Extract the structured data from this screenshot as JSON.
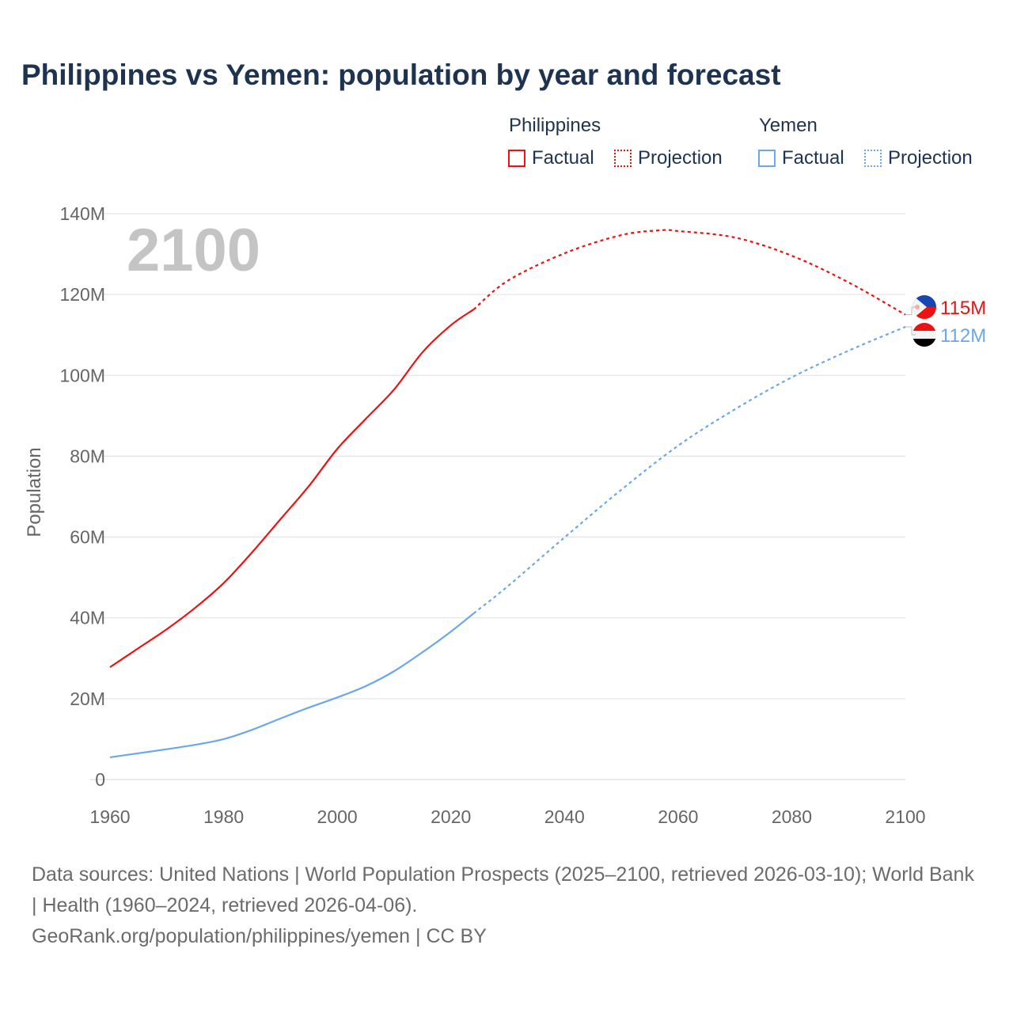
{
  "title": "Philippines vs Yemen: population by year and forecast",
  "legend": {
    "groups": [
      {
        "name": "Philippines",
        "factual": "Factual",
        "projection": "Projection",
        "color": "#ee1111"
      },
      {
        "name": "Yemen",
        "factual": "Factual",
        "projection": "Projection",
        "color": "#6ba8e8"
      }
    ]
  },
  "year_label": "2100",
  "footer": {
    "line1": "Data sources: United Nations | World Population Prospects (2025–2100, retrieved 2026-03-10); World Bank | Health (1960–2024, retrieved 2026-04-06).",
    "line2": "GeoRank.org/population/philippines/yemen | CC BY"
  },
  "chart_data": {
    "type": "line",
    "title": "Philippines vs Yemen: population by year and forecast",
    "xlabel": "",
    "ylabel": "Population",
    "xlim": [
      1960,
      2100
    ],
    "ylim": [
      0,
      140
    ],
    "xticks": [
      "1960",
      "1980",
      "2000",
      "2020",
      "2040",
      "2060",
      "2080",
      "2100"
    ],
    "yticks": [
      "0",
      "20M",
      "40M",
      "60M",
      "80M",
      "100M",
      "120M",
      "140M"
    ],
    "grid": true,
    "series": [
      {
        "name": "Philippines",
        "color": "#ee1111",
        "end_label": "115M",
        "factual": [
          [
            1960,
            27.8
          ],
          [
            1965,
            32.5
          ],
          [
            1970,
            37.2
          ],
          [
            1975,
            42.5
          ],
          [
            1980,
            48.6
          ],
          [
            1985,
            56.2
          ],
          [
            1990,
            64.4
          ],
          [
            1995,
            72.6
          ],
          [
            2000,
            81.8
          ],
          [
            2005,
            89.2
          ],
          [
            2010,
            96.5
          ],
          [
            2015,
            105.7
          ],
          [
            2020,
            112.4
          ],
          [
            2024,
            116.3
          ]
        ],
        "projection": [
          [
            2024,
            116.3
          ],
          [
            2030,
            123.4
          ],
          [
            2040,
            130.2
          ],
          [
            2050,
            134.7
          ],
          [
            2057,
            135.9
          ],
          [
            2060,
            135.7
          ],
          [
            2070,
            134.1
          ],
          [
            2080,
            129.6
          ],
          [
            2090,
            123
          ],
          [
            2100,
            115
          ]
        ]
      },
      {
        "name": "Yemen",
        "color": "#6ba8e8",
        "end_label": "112M",
        "factual": [
          [
            1960,
            5.5
          ],
          [
            1965,
            6.5
          ],
          [
            1970,
            7.5
          ],
          [
            1975,
            8.6
          ],
          [
            1980,
            10
          ],
          [
            1985,
            12.3
          ],
          [
            1990,
            15.1
          ],
          [
            1995,
            17.8
          ],
          [
            2000,
            20.3
          ],
          [
            2005,
            23.1
          ],
          [
            2010,
            26.8
          ],
          [
            2015,
            31.5
          ],
          [
            2020,
            36.6
          ],
          [
            2024,
            41.1
          ]
        ],
        "projection": [
          [
            2024,
            41.1
          ],
          [
            2030,
            47.8
          ],
          [
            2040,
            59.9
          ],
          [
            2050,
            71.7
          ],
          [
            2060,
            82.6
          ],
          [
            2070,
            91.6
          ],
          [
            2080,
            99.5
          ],
          [
            2090,
            106.1
          ],
          [
            2100,
            112
          ]
        ]
      }
    ]
  }
}
